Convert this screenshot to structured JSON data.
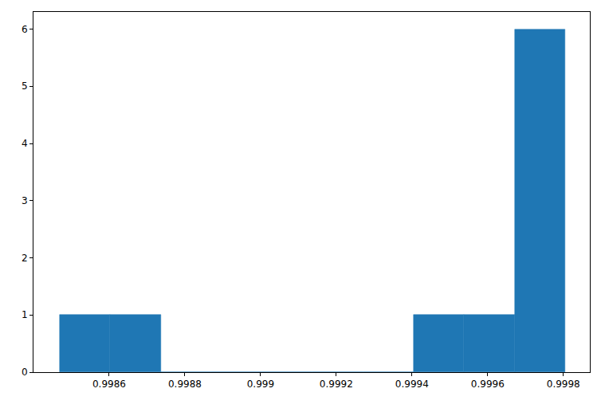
{
  "chart_data": {
    "type": "histogram",
    "bins": [
      0.99847,
      0.998603,
      0.998737,
      0.99887,
      0.999004,
      0.999137,
      0.999271,
      0.999404,
      0.999538,
      0.999671,
      0.999805
    ],
    "values": [
      1,
      1,
      0,
      0,
      0,
      0,
      0,
      1,
      1,
      6
    ],
    "color": "#1f77b4",
    "xlim": [
      0.9984,
      0.99987
    ],
    "xticks": [
      0.9986,
      0.9988,
      0.999,
      0.9992,
      0.9994,
      0.9996,
      0.9998
    ],
    "ylim": [
      0,
      6.3
    ],
    "yticks": [
      0,
      1,
      2,
      3,
      4,
      5,
      6
    ],
    "grid": false
  }
}
